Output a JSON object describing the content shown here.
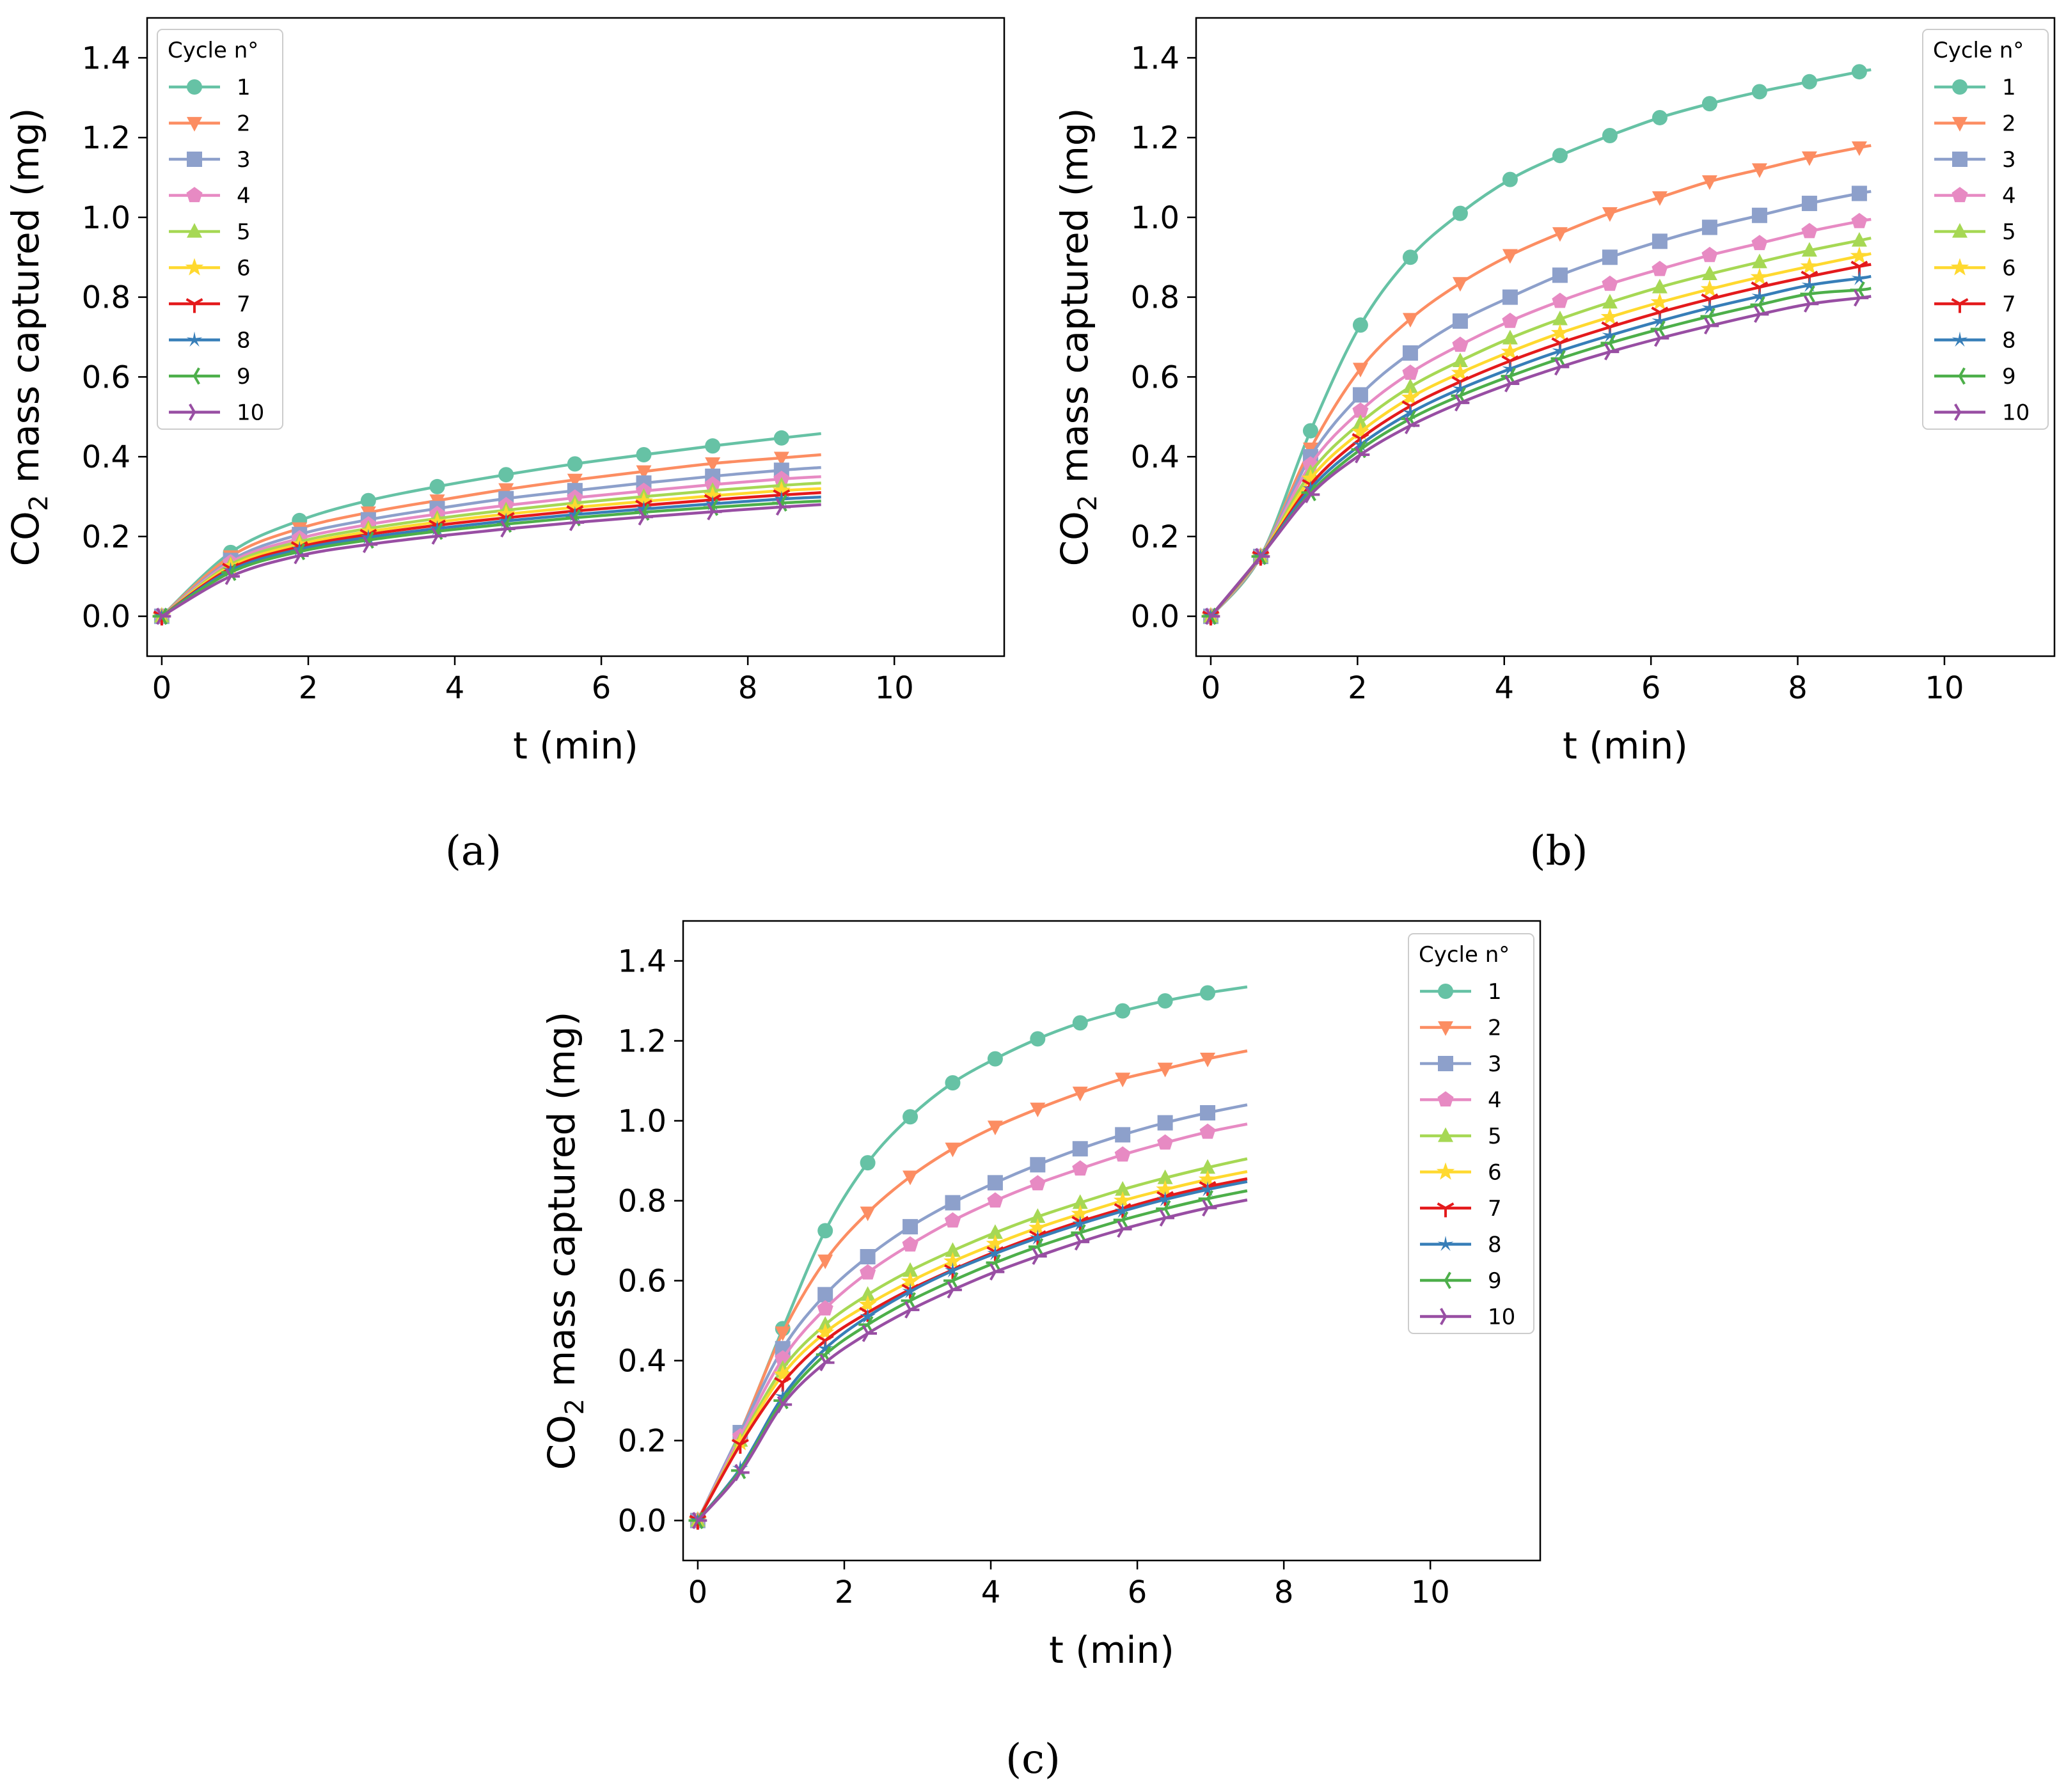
{
  "figure": {
    "captions": [
      "(a)",
      "(b)",
      "(c)"
    ]
  },
  "series_colors": [
    "#66c2a5",
    "#fc8d62",
    "#8da0cb",
    "#e78ac3",
    "#a6d854",
    "#ffd92f",
    "#e41a1c",
    "#377eb8",
    "#4daf4a",
    "#984ea3"
  ],
  "series_markers": [
    "circle",
    "triangle-down",
    "square",
    "pentagon",
    "triangle-up",
    "star",
    "tri-down",
    "star-thin",
    "tri-left",
    "tri-right"
  ],
  "chart_data": [
    {
      "type": "line",
      "panel": "(a)",
      "xlabel": "t (min)",
      "ylabel": "CO2 mass captured (mg)",
      "ylabel_main": "CO",
      "ylabel_sub": "2",
      "ylabel_rest": " mass captured (mg)",
      "xlim": [
        -0.2,
        11.5
      ],
      "ylim": [
        -0.1,
        1.5
      ],
      "xticks": [
        0,
        2,
        4,
        6,
        8,
        10
      ],
      "yticks": [
        0.0,
        0.2,
        0.4,
        0.6,
        0.8,
        1.0,
        1.2,
        1.4
      ],
      "legend_title": "Cycle n°",
      "legend_position": "top-left",
      "x": [
        0,
        0.94,
        1.88,
        2.82,
        3.76,
        4.7,
        5.64,
        6.58,
        7.52,
        8.46,
        9.0
      ],
      "series": [
        {
          "name": "1",
          "values": [
            0,
            0.16,
            0.24,
            0.29,
            0.325,
            0.355,
            0.382,
            0.405,
            0.427,
            0.447,
            0.458
          ]
        },
        {
          "name": "2",
          "values": [
            0,
            0.15,
            0.22,
            0.26,
            0.29,
            0.318,
            0.342,
            0.363,
            0.383,
            0.397,
            0.405
          ]
        },
        {
          "name": "3",
          "values": [
            0,
            0.14,
            0.205,
            0.242,
            0.27,
            0.295,
            0.315,
            0.334,
            0.351,
            0.366,
            0.373
          ]
        },
        {
          "name": "4",
          "values": [
            0,
            0.135,
            0.195,
            0.23,
            0.256,
            0.278,
            0.297,
            0.314,
            0.33,
            0.344,
            0.35
          ]
        },
        {
          "name": "5",
          "values": [
            0,
            0.13,
            0.187,
            0.22,
            0.245,
            0.266,
            0.284,
            0.3,
            0.315,
            0.328,
            0.334
          ]
        },
        {
          "name": "6",
          "values": [
            0,
            0.125,
            0.18,
            0.212,
            0.236,
            0.256,
            0.273,
            0.288,
            0.302,
            0.315,
            0.32
          ]
        },
        {
          "name": "7",
          "values": [
            0,
            0.12,
            0.174,
            0.205,
            0.228,
            0.247,
            0.264,
            0.278,
            0.292,
            0.304,
            0.31
          ]
        },
        {
          "name": "8",
          "values": [
            0,
            0.115,
            0.168,
            0.198,
            0.22,
            0.239,
            0.255,
            0.269,
            0.282,
            0.294,
            0.299
          ]
        },
        {
          "name": "9",
          "values": [
            0,
            0.11,
            0.162,
            0.191,
            0.213,
            0.231,
            0.247,
            0.261,
            0.273,
            0.284,
            0.289
          ]
        },
        {
          "name": "10",
          "values": [
            0,
            0.1,
            0.152,
            0.18,
            0.201,
            0.219,
            0.235,
            0.249,
            0.262,
            0.274,
            0.28
          ]
        }
      ]
    },
    {
      "type": "line",
      "panel": "(b)",
      "xlabel": "t (min)",
      "ylabel": "CO2 mass captured (mg)",
      "ylabel_main": "CO",
      "ylabel_sub": "2",
      "ylabel_rest": " mass captured (mg)",
      "xlim": [
        -0.2,
        11.5
      ],
      "ylim": [
        -0.1,
        1.5
      ],
      "xticks": [
        0,
        2,
        4,
        6,
        8,
        10
      ],
      "yticks": [
        0.0,
        0.2,
        0.4,
        0.6,
        0.8,
        1.0,
        1.2,
        1.4
      ],
      "legend_title": "Cycle n°",
      "legend_position": "top-right",
      "x": [
        0,
        0.68,
        1.36,
        2.04,
        2.72,
        3.4,
        4.08,
        4.76,
        5.44,
        6.12,
        6.8,
        7.48,
        8.16,
        8.84,
        9.0
      ],
      "series": [
        {
          "name": "1",
          "values": [
            0,
            0.15,
            0.465,
            0.73,
            0.9,
            1.01,
            1.095,
            1.155,
            1.205,
            1.25,
            1.285,
            1.315,
            1.34,
            1.365,
            1.37
          ]
        },
        {
          "name": "2",
          "values": [
            0,
            0.15,
            0.42,
            0.62,
            0.745,
            0.835,
            0.905,
            0.96,
            1.01,
            1.05,
            1.09,
            1.12,
            1.15,
            1.175,
            1.18
          ]
        },
        {
          "name": "3",
          "values": [
            0,
            0.15,
            0.4,
            0.555,
            0.66,
            0.74,
            0.8,
            0.855,
            0.9,
            0.94,
            0.975,
            1.005,
            1.035,
            1.06,
            1.065
          ]
        },
        {
          "name": "4",
          "values": [
            0,
            0.15,
            0.38,
            0.515,
            0.61,
            0.68,
            0.74,
            0.79,
            0.833,
            0.87,
            0.905,
            0.935,
            0.965,
            0.99,
            0.995
          ]
        },
        {
          "name": "5",
          "values": [
            0,
            0.15,
            0.36,
            0.485,
            0.575,
            0.64,
            0.697,
            0.745,
            0.787,
            0.825,
            0.858,
            0.888,
            0.917,
            0.942,
            0.948
          ]
        },
        {
          "name": "6",
          "values": [
            0,
            0.15,
            0.345,
            0.462,
            0.548,
            0.61,
            0.663,
            0.71,
            0.75,
            0.787,
            0.82,
            0.85,
            0.877,
            0.903,
            0.909
          ]
        },
        {
          "name": "7",
          "values": [
            0,
            0.15,
            0.33,
            0.445,
            0.527,
            0.588,
            0.64,
            0.685,
            0.725,
            0.762,
            0.795,
            0.825,
            0.852,
            0.877,
            0.882
          ]
        },
        {
          "name": "8",
          "values": [
            0,
            0.15,
            0.32,
            0.43,
            0.51,
            0.57,
            0.62,
            0.665,
            0.704,
            0.74,
            0.773,
            0.802,
            0.83,
            0.847,
            0.852
          ]
        },
        {
          "name": "9",
          "values": [
            0,
            0.15,
            0.31,
            0.418,
            0.495,
            0.553,
            0.602,
            0.646,
            0.685,
            0.72,
            0.752,
            0.781,
            0.808,
            0.818,
            0.822
          ]
        },
        {
          "name": "10",
          "values": [
            0,
            0.15,
            0.305,
            0.405,
            0.478,
            0.535,
            0.583,
            0.625,
            0.663,
            0.697,
            0.728,
            0.757,
            0.783,
            0.798,
            0.802
          ]
        }
      ]
    },
    {
      "type": "line",
      "panel": "(c)",
      "xlabel": "t (min)",
      "ylabel": "CO2 mass captured (mg)",
      "ylabel_main": "CO",
      "ylabel_sub": "2",
      "ylabel_rest": " mass captured (mg)",
      "xlim": [
        -0.2,
        11.5
      ],
      "ylim": [
        -0.1,
        1.5
      ],
      "xticks": [
        0,
        2,
        4,
        6,
        8,
        10
      ],
      "yticks": [
        0.0,
        0.2,
        0.4,
        0.6,
        0.8,
        1.0,
        1.2,
        1.4
      ],
      "legend_title": "Cycle n°",
      "legend_position": "top-right",
      "x": [
        0,
        0.58,
        1.16,
        1.74,
        2.32,
        2.9,
        3.48,
        4.06,
        4.64,
        5.22,
        5.8,
        6.38,
        6.96,
        7.5
      ],
      "series": [
        {
          "name": "1",
          "values": [
            0,
            0.22,
            0.48,
            0.725,
            0.895,
            1.01,
            1.095,
            1.155,
            1.205,
            1.245,
            1.275,
            1.3,
            1.32,
            1.335
          ]
        },
        {
          "name": "2",
          "values": [
            0,
            0.22,
            0.47,
            0.65,
            0.77,
            0.86,
            0.93,
            0.985,
            1.03,
            1.07,
            1.105,
            1.13,
            1.155,
            1.175
          ]
        },
        {
          "name": "3",
          "values": [
            0,
            0.22,
            0.43,
            0.565,
            0.66,
            0.735,
            0.795,
            0.845,
            0.89,
            0.93,
            0.965,
            0.995,
            1.02,
            1.04
          ]
        },
        {
          "name": "4",
          "values": [
            0,
            0.21,
            0.405,
            0.53,
            0.62,
            0.69,
            0.75,
            0.8,
            0.843,
            0.88,
            0.915,
            0.945,
            0.972,
            0.992
          ]
        },
        {
          "name": "5",
          "values": [
            0,
            0.2,
            0.38,
            0.49,
            0.565,
            0.625,
            0.675,
            0.72,
            0.76,
            0.795,
            0.828,
            0.857,
            0.883,
            0.905
          ]
        },
        {
          "name": "6",
          "values": [
            0,
            0.195,
            0.365,
            0.47,
            0.54,
            0.598,
            0.648,
            0.692,
            0.732,
            0.767,
            0.8,
            0.828,
            0.853,
            0.873
          ]
        },
        {
          "name": "7",
          "values": [
            0,
            0.19,
            0.345,
            0.45,
            0.52,
            0.578,
            0.627,
            0.672,
            0.712,
            0.748,
            0.78,
            0.81,
            0.835,
            0.855
          ]
        },
        {
          "name": "8",
          "values": [
            0,
            0.13,
            0.31,
            0.43,
            0.51,
            0.573,
            0.625,
            0.668,
            0.707,
            0.742,
            0.774,
            0.803,
            0.828,
            0.848
          ]
        },
        {
          "name": "9",
          "values": [
            0,
            0.125,
            0.3,
            0.415,
            0.49,
            0.55,
            0.6,
            0.645,
            0.685,
            0.72,
            0.752,
            0.78,
            0.805,
            0.825
          ]
        },
        {
          "name": "10",
          "values": [
            0,
            0.12,
            0.29,
            0.395,
            0.468,
            0.527,
            0.577,
            0.622,
            0.661,
            0.697,
            0.729,
            0.757,
            0.782,
            0.802
          ]
        }
      ]
    }
  ]
}
